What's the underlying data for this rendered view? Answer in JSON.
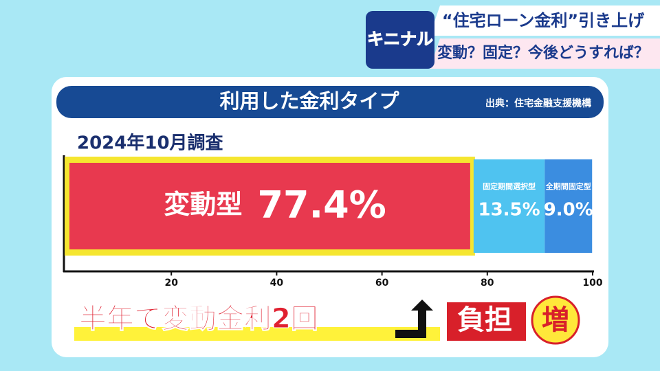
{
  "header": {
    "logo": "キニナル",
    "headline": "“住宅ローン金利”引き上げ",
    "subheadline": "変動？固定？今後どうすれば？"
  },
  "chart_data": {
    "type": "stacked_bar",
    "title": "利用した金利タイプ",
    "source": "出典：住宅金融支援機構",
    "subtitle": "2024年10月調査",
    "series": [
      {
        "name": "変動型",
        "color": "#e8394f",
        "values": [
          77.4
        ],
        "value_labels": [
          "77.4%"
        ]
      },
      {
        "name": "固定期間選択型",
        "color": "#4fc3f0",
        "values": [
          13.5
        ],
        "value_labels": [
          "13.5%"
        ]
      },
      {
        "name": "全期間固定型",
        "color": "#3b8de0",
        "values": [
          9.0
        ],
        "value_labels": [
          "9.0%"
        ]
      }
    ],
    "xlim": [
      0,
      100
    ],
    "xticks": [
      20,
      40,
      60,
      80,
      100
    ]
  },
  "footer": {
    "caption": "半年で変動金利2回",
    "burden": "負担",
    "increase": "増"
  }
}
